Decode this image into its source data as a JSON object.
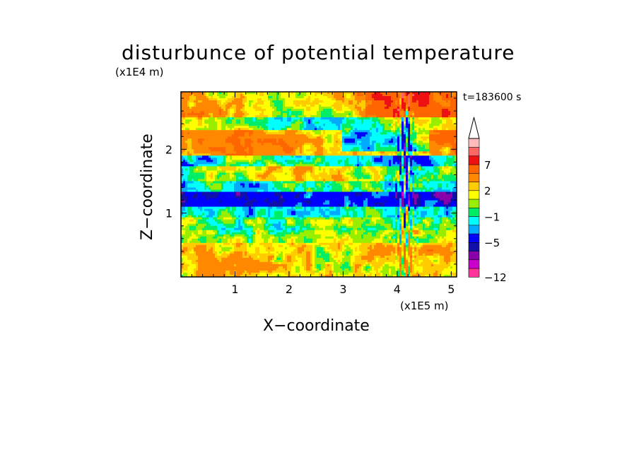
{
  "chart_data": {
    "type": "heatmap",
    "title": "disturbunce of potential temperature",
    "annotation": "t=183600 s",
    "xlabel": "X−coordinate",
    "ylabel": "Z−coordinate",
    "x_multiplier": "(x1E5 m)",
    "y_multiplier": "(x1E4 m)",
    "xlim": [
      0,
      5.1
    ],
    "ylim": [
      0,
      2.9
    ],
    "x_ticks": [
      "1",
      "2",
      "3",
      "4",
      "5"
    ],
    "y_ticks": [
      "1",
      "2"
    ],
    "grid": false,
    "colorbar": {
      "position": "right",
      "extend": "max",
      "labels": [
        "7",
        "2",
        "−1",
        "−5",
        "−12"
      ],
      "colors": [
        "#ff3399",
        "#cc00cc",
        "#8800aa",
        "#1111aa",
        "#0000ff",
        "#00aaff",
        "#00ffff",
        "#00ee66",
        "#99ee00",
        "#ffff00",
        "#ffcc00",
        "#ff8800",
        "#ff6600",
        "#ee1111",
        "#ff6666",
        "#ffbbbb"
      ]
    },
    "field_description": "potential temperature disturbance; alternating warm/cold horizontal layers with a cold band near z=1.2 (x1E4 m) and a wave disturbance near x=4.2 (x1E5 m)"
  }
}
